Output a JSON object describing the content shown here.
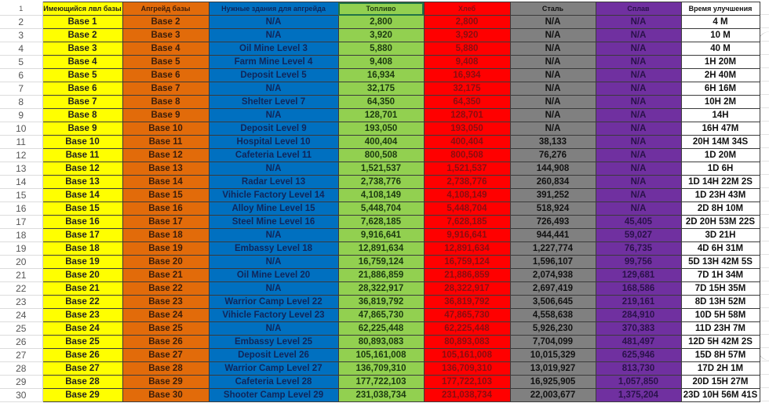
{
  "sheet": {
    "header_row_number": "1",
    "headers": {
      "current": "Имеющийся лвл базы",
      "upgrade": "Апгрейд базы",
      "buildings": "Нужные здания для апгрейда",
      "fuel": "Топливо",
      "bread": "Хлеб",
      "steel": "Сталь",
      "alloy": "Сплав",
      "time": "Время улучшения"
    },
    "colors": {
      "current": "#ffff00",
      "upgrade": "#e26b0a",
      "buildings": "#0070c0",
      "fuel": "#92d050",
      "bread": "#ff0000",
      "steel": "#808080",
      "alloy": "#7030a0",
      "time": "#ffffff"
    },
    "rows": [
      {
        "n": "2",
        "current": "Base 1",
        "upgrade": "Base 2",
        "buildings": "N/A",
        "fuel": "2,800",
        "bread": "2,800",
        "steel": "N/A",
        "alloy": "N/A",
        "time": "4 M"
      },
      {
        "n": "3",
        "current": "Base 2",
        "upgrade": "Base 3",
        "buildings": "N/A",
        "fuel": "3,920",
        "bread": "3,920",
        "steel": "N/A",
        "alloy": "N/A",
        "time": "10 M"
      },
      {
        "n": "4",
        "current": "Base 3",
        "upgrade": "Base 4",
        "buildings": "Oil Mine Level 3",
        "fuel": "5,880",
        "bread": "5,880",
        "steel": "N/A",
        "alloy": "N/A",
        "time": "40 M"
      },
      {
        "n": "5",
        "current": "Base 4",
        "upgrade": "Base 5",
        "buildings": "Farm Mine Level 4",
        "fuel": "9,408",
        "bread": "9,408",
        "steel": "N/A",
        "alloy": "N/A",
        "time": "1H 20M"
      },
      {
        "n": "6",
        "current": "Base 5",
        "upgrade": "Base 6",
        "buildings": "Deposit Level 5",
        "fuel": "16,934",
        "bread": "16,934",
        "steel": "N/A",
        "alloy": "N/A",
        "time": "2H 40M"
      },
      {
        "n": "7",
        "current": "Base 6",
        "upgrade": "Base 7",
        "buildings": "N/A",
        "fuel": "32,175",
        "bread": "32,175",
        "steel": "N/A",
        "alloy": "N/A",
        "time": "6H 16M"
      },
      {
        "n": "8",
        "current": "Base 7",
        "upgrade": "Base 8",
        "buildings": "Shelter Level 7",
        "fuel": "64,350",
        "bread": "64,350",
        "steel": "N/A",
        "alloy": "N/A",
        "time": "10H 2M"
      },
      {
        "n": "9",
        "current": "Base 8",
        "upgrade": "Base 9",
        "buildings": "N/A",
        "fuel": "128,701",
        "bread": "128,701",
        "steel": "N/A",
        "alloy": "N/A",
        "time": "14H"
      },
      {
        "n": "10",
        "current": "Base 9",
        "upgrade": "Base 10",
        "buildings": "Deposit Level 9",
        "fuel": "193,050",
        "bread": "193,050",
        "steel": "N/A",
        "alloy": "N/A",
        "time": "16H 47M"
      },
      {
        "n": "11",
        "current": "Base 10",
        "upgrade": "Base 11",
        "buildings": "Hospital Level 10",
        "fuel": "400,404",
        "bread": "400,404",
        "steel": "38,133",
        "alloy": "N/A",
        "time": "20H 14M 34S"
      },
      {
        "n": "12",
        "current": "Base 11",
        "upgrade": "Base 12",
        "buildings": "Cafeteria Level 11",
        "fuel": "800,508",
        "bread": "800,508",
        "steel": "76,276",
        "alloy": "N/A",
        "time": "1D 20M"
      },
      {
        "n": "13",
        "current": "Base 12",
        "upgrade": "Base 13",
        "buildings": "N/A",
        "fuel": "1,521,537",
        "bread": "1,521,537",
        "steel": "144,908",
        "alloy": "N/A",
        "time": "1D 6H"
      },
      {
        "n": "14",
        "current": "Base 13",
        "upgrade": "Base 14",
        "buildings": "Radar Level 13",
        "fuel": "2,738,776",
        "bread": "2,738,776",
        "steel": "260,834",
        "alloy": "N/A",
        "time": "1D 14H 22M 2S"
      },
      {
        "n": "15",
        "current": "Base 14",
        "upgrade": "Base 15",
        "buildings": "Vihicle Factory Level 14",
        "fuel": "4,108,149",
        "bread": "4,108,149",
        "steel": "391,252",
        "alloy": "N/A",
        "time": "1D 23H 43M"
      },
      {
        "n": "16",
        "current": "Base 15",
        "upgrade": "Base 16",
        "buildings": "Alloy Mine Level 15",
        "fuel": "5,448,704",
        "bread": "5,448,704",
        "steel": "518,924",
        "alloy": "N/A",
        "time": "2D 8H 10M"
      },
      {
        "n": "17",
        "current": "Base 16",
        "upgrade": "Base 17",
        "buildings": "Steel Mine Level 16",
        "fuel": "7,628,185",
        "bread": "7,628,185",
        "steel": "726,493",
        "alloy": "45,405",
        "time": "2D 20H 53M 22S"
      },
      {
        "n": "18",
        "current": "Base 17",
        "upgrade": "Base 18",
        "buildings": "N/A",
        "fuel": "9,916,641",
        "bread": "9,916,641",
        "steel": "944,441",
        "alloy": "59,027",
        "time": "3D 21H"
      },
      {
        "n": "19",
        "current": "Base 18",
        "upgrade": "Base 19",
        "buildings": "Embassy Level 18",
        "fuel": "12,891,634",
        "bread": "12,891,634",
        "steel": "1,227,774",
        "alloy": "76,735",
        "time": "4D 6H 31M"
      },
      {
        "n": "20",
        "current": "Base 19",
        "upgrade": "Base 20",
        "buildings": "N/A",
        "fuel": "16,759,124",
        "bread": "16,759,124",
        "steel": "1,596,107",
        "alloy": "99,756",
        "time": "5D 13H 42M 5S"
      },
      {
        "n": "21",
        "current": "Base 20",
        "upgrade": "Base 21",
        "buildings": "Oil Mine Level 20",
        "fuel": "21,886,859",
        "bread": "21,886,859",
        "steel": "2,074,938",
        "alloy": "129,681",
        "time": "7D 1H 34M"
      },
      {
        "n": "22",
        "current": "Base 21",
        "upgrade": "Base 22",
        "buildings": "N/A",
        "fuel": "28,322,917",
        "bread": "28,322,917",
        "steel": "2,697,419",
        "alloy": "168,586",
        "time": "7D 15H 35M"
      },
      {
        "n": "23",
        "current": "Base 22",
        "upgrade": "Base 23",
        "buildings": "Warrior Camp Level 22",
        "fuel": "36,819,792",
        "bread": "36,819,792",
        "steel": "3,506,645",
        "alloy": "219,161",
        "time": "8D 13H 52M"
      },
      {
        "n": "24",
        "current": "Base 23",
        "upgrade": "Base 24",
        "buildings": "Vihicle Factory Level 23",
        "fuel": "47,865,730",
        "bread": "47,865,730",
        "steel": "4,558,638",
        "alloy": "284,910",
        "time": "10D 5H 58M"
      },
      {
        "n": "25",
        "current": "Base 24",
        "upgrade": "Base 25",
        "buildings": "N/A",
        "fuel": "62,225,448",
        "bread": "62,225,448",
        "steel": "5,926,230",
        "alloy": "370,383",
        "time": "11D 23H 7M"
      },
      {
        "n": "26",
        "current": "Base 25",
        "upgrade": "Base 26",
        "buildings": "Embassy Level 25",
        "fuel": "80,893,083",
        "bread": "80,893,083",
        "steel": "7,704,099",
        "alloy": "481,497",
        "time": "12D 5H 42M 2S"
      },
      {
        "n": "27",
        "current": "Base 26",
        "upgrade": "Base 27",
        "buildings": "Deposit Level 26",
        "fuel": "105,161,008",
        "bread": "105,161,008",
        "steel": "10,015,329",
        "alloy": "625,946",
        "time": "15D 8H 57M"
      },
      {
        "n": "28",
        "current": "Base 27",
        "upgrade": "Base 28",
        "buildings": "Warrior Camp Level 27",
        "fuel": "136,709,310",
        "bread": "136,709,310",
        "steel": "13,019,927",
        "alloy": "813,730",
        "time": "17D 2H 1M"
      },
      {
        "n": "29",
        "current": "Base 28",
        "upgrade": "Base 29",
        "buildings": "Cafeteria Level 28",
        "fuel": "177,722,103",
        "bread": "177,722,103",
        "steel": "16,925,905",
        "alloy": "1,057,850",
        "time": "20D 15H 27M"
      },
      {
        "n": "30",
        "current": "Base 29",
        "upgrade": "Base 30",
        "buildings": "Shooter Camp Level 29",
        "fuel": "231,038,734",
        "bread": "231,038,734",
        "steel": "22,003,677",
        "alloy": "1,375,204",
        "time": "23D 10H 56M 41S"
      }
    ]
  }
}
